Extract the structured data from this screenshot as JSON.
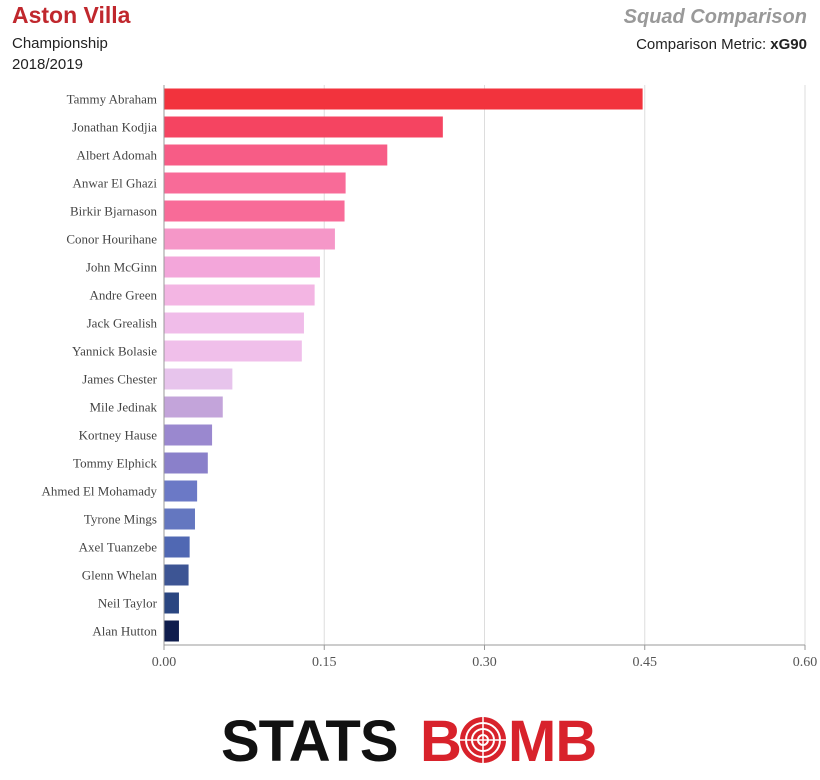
{
  "header": {
    "team": "Aston Villa",
    "competition": "Championship",
    "season": "2018/2019",
    "title": "Squad Comparison",
    "metric_label": "Comparison Metric:",
    "metric_value": "xG90"
  },
  "chart_data": {
    "type": "bar",
    "orientation": "horizontal",
    "categories": [
      "Tammy Abraham",
      "Jonathan Kodjia",
      "Albert Adomah",
      "Anwar El Ghazi",
      "Birkir Bjarnason",
      "Conor Hourihane",
      "John McGinn",
      "Andre Green",
      "Jack Grealish",
      "Yannick Bolasie",
      "James Chester",
      "Mile Jedinak",
      "Kortney Hause",
      "Tommy Elphick",
      "Ahmed El Mohamady",
      "Tyrone Mings",
      "Axel Tuanzebe",
      "Glenn Whelan",
      "Neil Taylor",
      "Alan Hutton"
    ],
    "values": [
      0.448,
      0.261,
      0.209,
      0.17,
      0.169,
      0.16,
      0.146,
      0.141,
      0.131,
      0.129,
      0.064,
      0.055,
      0.045,
      0.041,
      0.031,
      0.029,
      0.024,
      0.023,
      0.014,
      0.014
    ],
    "colors": [
      "#f2333d",
      "#f54461",
      "#f75c86",
      "#f86b98",
      "#f86b98",
      "#f597c8",
      "#f3a6da",
      "#f3b5e3",
      "#f0bce9",
      "#f0bfea",
      "#e7c4ec",
      "#c3a4da",
      "#9a88cf",
      "#8a80ca",
      "#6b79c6",
      "#6477c0",
      "#5068b3",
      "#3d5594",
      "#2a4681",
      "#0f1d4d"
    ],
    "xlim": [
      0,
      0.6
    ],
    "xticks": [
      "0.00",
      "0.15",
      "0.30",
      "0.45",
      "0.60"
    ],
    "tick_values": [
      0,
      0.15,
      0.3,
      0.45,
      0.6
    ],
    "xlabel": "",
    "ylabel": "",
    "grid": "vertical"
  },
  "logo": {
    "part1": "STATS",
    "part2": "B",
    "part3": "MB",
    "color1": "#111111",
    "color2": "#d8222b"
  }
}
